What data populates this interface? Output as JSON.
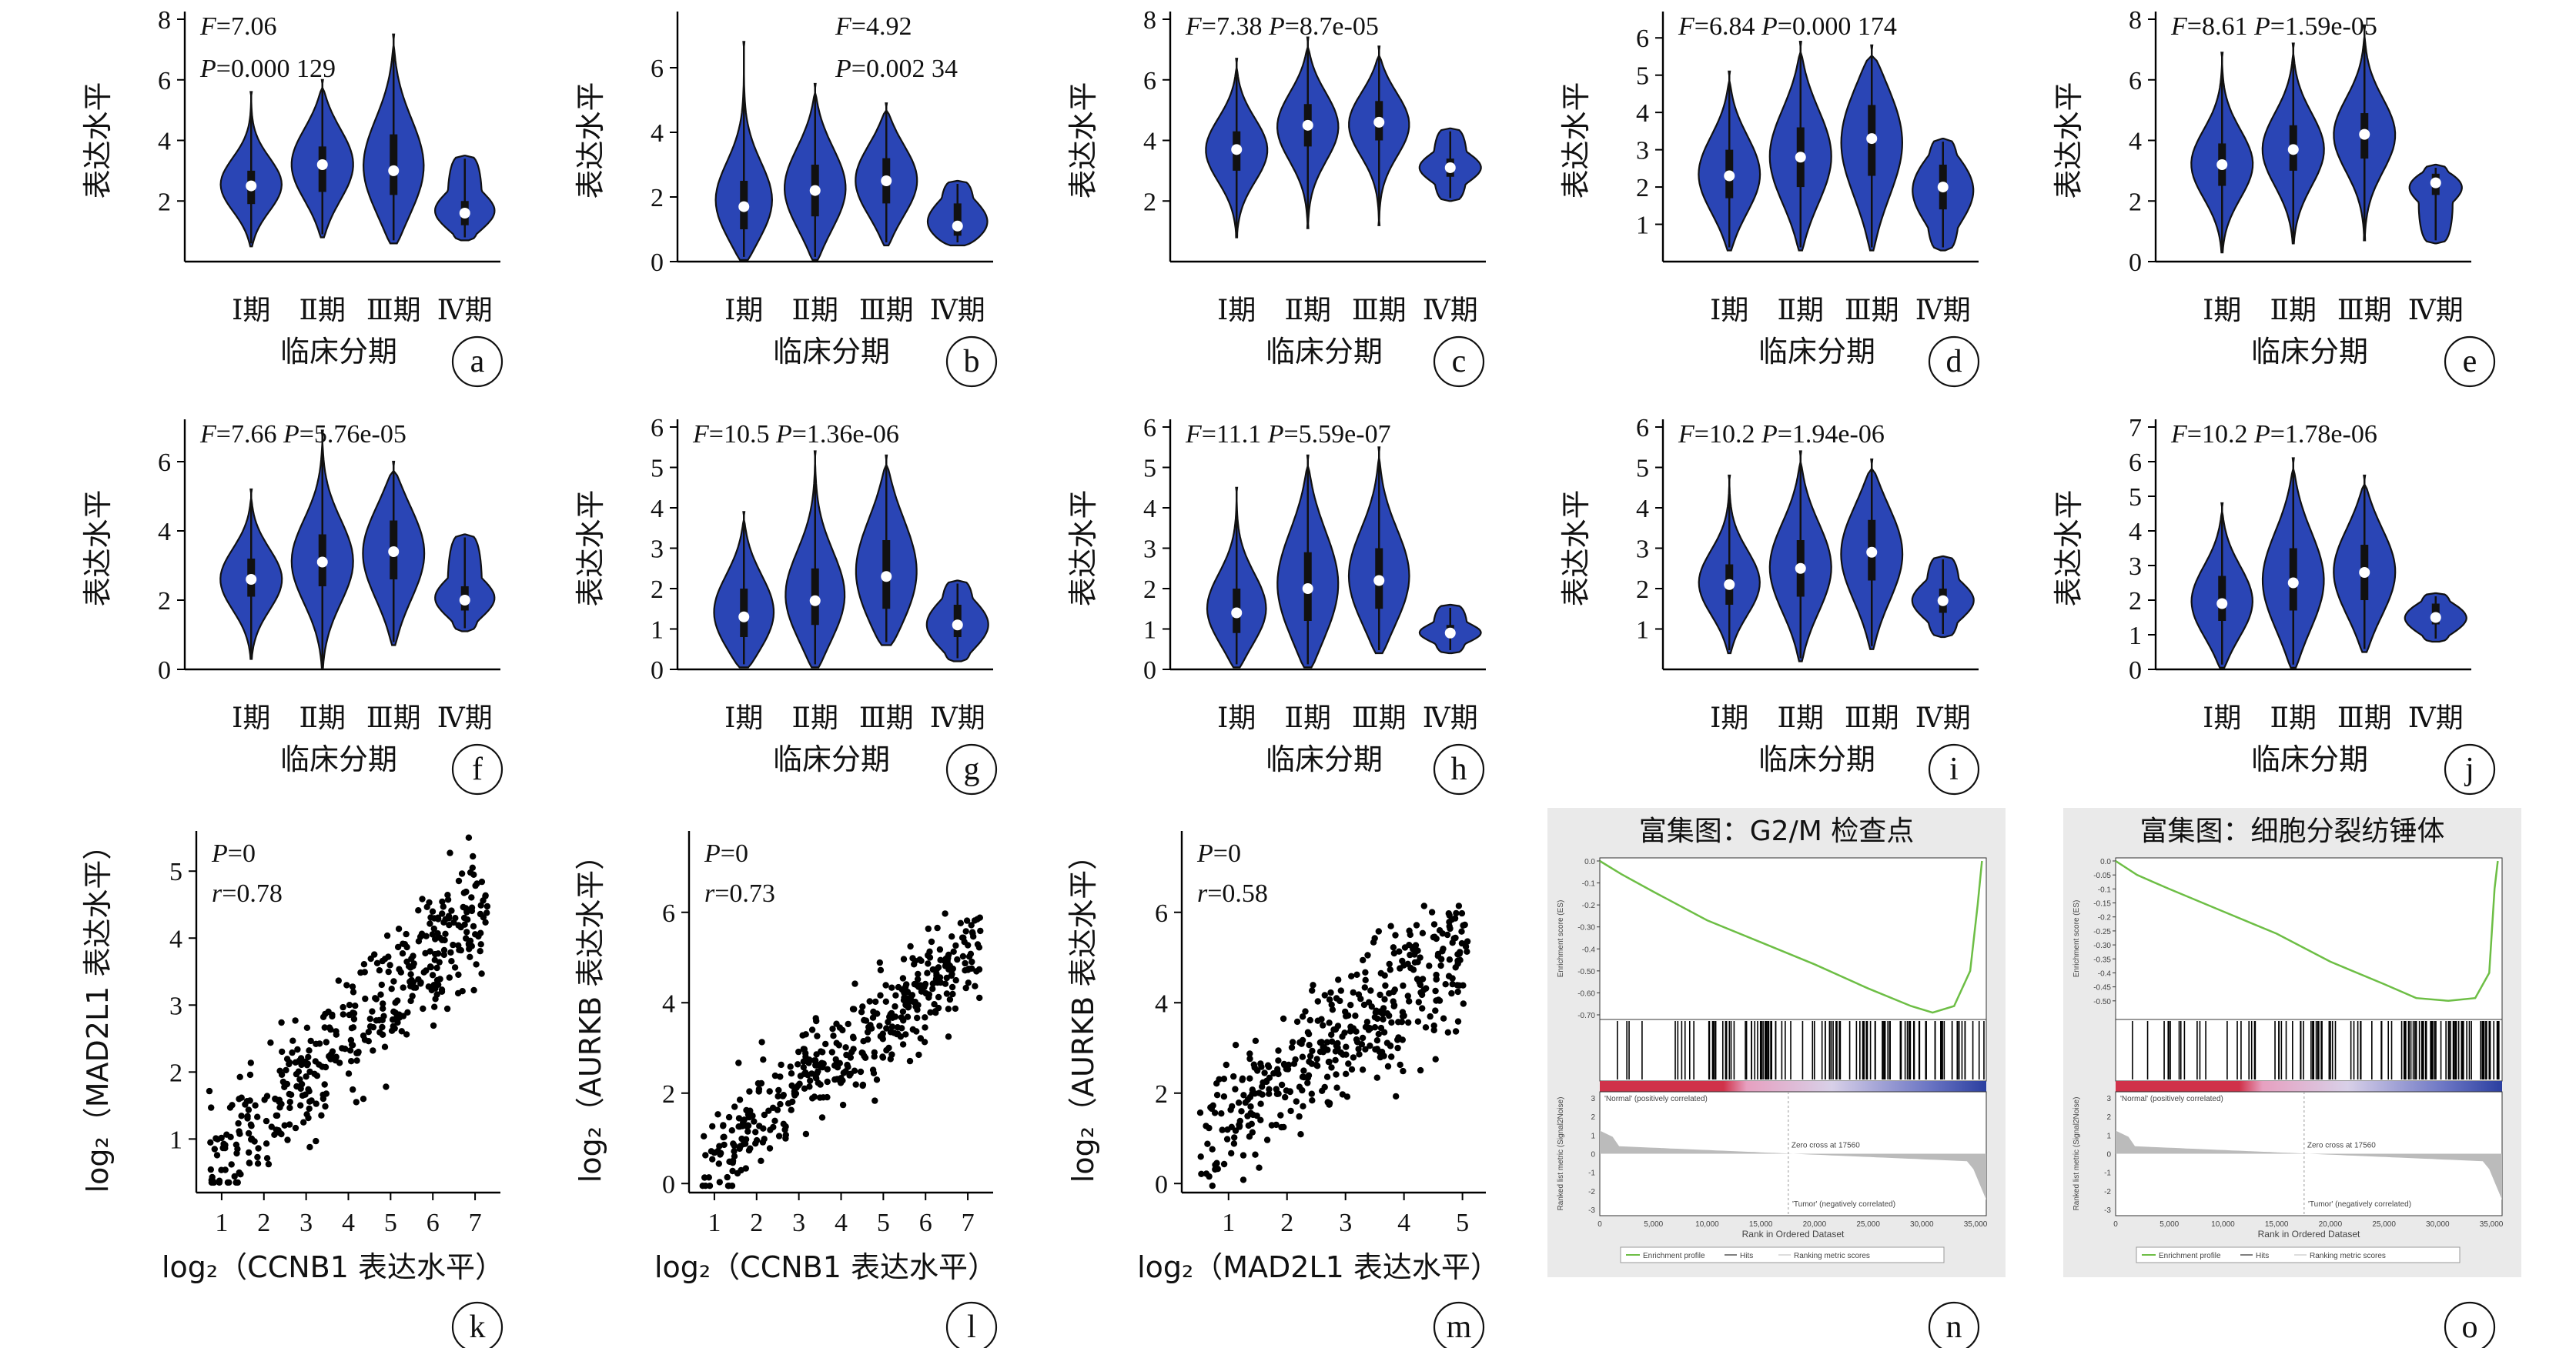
{
  "chart_data": [
    {
      "panel": "a",
      "type": "violin",
      "categories": [
        "Ⅰ期",
        "Ⅱ期",
        "Ⅲ期",
        "Ⅳ期"
      ],
      "ylabel": "表达水平",
      "xlabel": "临床分期",
      "F": "7.06",
      "P": "0.000 129",
      "ylim": [
        0,
        8
      ],
      "yticks": [
        2,
        4,
        6,
        8
      ],
      "groups": [
        {
          "min": 0.5,
          "q1": 1.9,
          "median": 2.5,
          "q3": 3.0,
          "max": 5.6
        },
        {
          "min": 0.8,
          "q1": 2.3,
          "median": 3.2,
          "q3": 3.8,
          "max": 6.0
        },
        {
          "min": 0.6,
          "q1": 2.2,
          "median": 3.0,
          "q3": 4.2,
          "max": 7.5
        },
        {
          "min": 0.7,
          "q1": 1.2,
          "median": 1.6,
          "q3": 2.0,
          "max": 3.5
        }
      ]
    },
    {
      "panel": "b",
      "type": "violin",
      "categories": [
        "Ⅰ期",
        "Ⅱ期",
        "Ⅲ期",
        "Ⅳ期"
      ],
      "ylabel": "表达水平",
      "xlabel": "临床分期",
      "F": "4.92",
      "P": "0.002 34",
      "ylim": [
        0,
        7.5
      ],
      "yticks": [
        0,
        2,
        4,
        6
      ],
      "groups": [
        {
          "min": 0.05,
          "q1": 1.0,
          "median": 1.7,
          "q3": 2.5,
          "max": 6.8
        },
        {
          "min": 0.05,
          "q1": 1.4,
          "median": 2.2,
          "q3": 3.0,
          "max": 5.5
        },
        {
          "min": 0.5,
          "q1": 1.8,
          "median": 2.5,
          "q3": 3.2,
          "max": 4.9
        },
        {
          "min": 0.5,
          "q1": 0.8,
          "median": 1.1,
          "q3": 1.8,
          "max": 2.5
        }
      ]
    },
    {
      "panel": "c",
      "type": "violin",
      "categories": [
        "Ⅰ期",
        "Ⅱ期",
        "Ⅲ期",
        "Ⅳ期"
      ],
      "ylabel": "表达水平",
      "xlabel": "临床分期",
      "F": "7.38",
      "P": "8.7e-05",
      "ylim": [
        0,
        8
      ],
      "yticks": [
        2,
        4,
        6,
        8
      ],
      "groups": [
        {
          "min": 0.8,
          "q1": 3.0,
          "median": 3.7,
          "q3": 4.3,
          "max": 6.7
        },
        {
          "min": 1.1,
          "q1": 3.8,
          "median": 4.5,
          "q3": 5.2,
          "max": 7.4
        },
        {
          "min": 1.2,
          "q1": 4.0,
          "median": 4.6,
          "q3": 5.3,
          "max": 7.1
        },
        {
          "min": 2.0,
          "q1": 2.8,
          "median": 3.1,
          "q3": 3.4,
          "max": 4.4
        }
      ]
    },
    {
      "panel": "d",
      "type": "violin",
      "categories": [
        "Ⅰ期",
        "Ⅱ期",
        "Ⅲ期",
        "Ⅳ期"
      ],
      "ylabel": "表达水平",
      "xlabel": "临床分期",
      "F": "6.84",
      "P": "0.000 174",
      "ylim": [
        0,
        6.5
      ],
      "yticks": [
        1,
        2,
        3,
        4,
        5,
        6
      ],
      "groups": [
        {
          "min": 0.3,
          "q1": 1.7,
          "median": 2.3,
          "q3": 3.0,
          "max": 5.1
        },
        {
          "min": 0.3,
          "q1": 2.0,
          "median": 2.8,
          "q3": 3.6,
          "max": 5.9
        },
        {
          "min": 0.3,
          "q1": 2.3,
          "median": 3.3,
          "q3": 4.2,
          "max": 5.8
        },
        {
          "min": 0.3,
          "q1": 1.4,
          "median": 2.0,
          "q3": 2.6,
          "max": 3.3
        }
      ]
    },
    {
      "panel": "e",
      "type": "violin",
      "categories": [
        "Ⅰ期",
        "Ⅱ期",
        "Ⅲ期",
        "Ⅳ期"
      ],
      "ylabel": "表达水平",
      "xlabel": "临床分期",
      "F": "8.61",
      "P": "1.59e-05",
      "ylim": [
        0,
        8
      ],
      "yticks": [
        0,
        2,
        4,
        6,
        8
      ],
      "groups": [
        {
          "min": 0.3,
          "q1": 2.5,
          "median": 3.2,
          "q3": 3.9,
          "max": 6.9
        },
        {
          "min": 0.6,
          "q1": 3.0,
          "median": 3.7,
          "q3": 4.5,
          "max": 7.2
        },
        {
          "min": 0.7,
          "q1": 3.4,
          "median": 4.2,
          "q3": 4.9,
          "max": 7.8
        },
        {
          "min": 0.6,
          "q1": 2.2,
          "median": 2.6,
          "q3": 2.9,
          "max": 3.2
        }
      ]
    },
    {
      "panel": "f",
      "type": "violin",
      "categories": [
        "Ⅰ期",
        "Ⅱ期",
        "Ⅲ期",
        "Ⅳ期"
      ],
      "ylabel": "表达水平",
      "xlabel": "临床分期",
      "F": "7.66",
      "P": "5.76e-05",
      "ylim": [
        0,
        7
      ],
      "yticks": [
        0,
        2,
        4,
        6
      ],
      "groups": [
        {
          "min": 0.3,
          "q1": 2.1,
          "median": 2.6,
          "q3": 3.2,
          "max": 5.2
        },
        {
          "min": 0.05,
          "q1": 2.4,
          "median": 3.1,
          "q3": 3.9,
          "max": 6.9
        },
        {
          "min": 0.7,
          "q1": 2.6,
          "median": 3.4,
          "q3": 4.3,
          "max": 6.0
        },
        {
          "min": 1.1,
          "q1": 1.7,
          "median": 2.0,
          "q3": 2.4,
          "max": 3.9
        }
      ]
    },
    {
      "panel": "g",
      "type": "violin",
      "categories": [
        "Ⅰ期",
        "Ⅱ期",
        "Ⅲ期",
        "Ⅳ期"
      ],
      "ylabel": "表达水平",
      "xlabel": "临床分期",
      "F": "10.5",
      "P": "1.36e-06",
      "ylim": [
        0,
        6
      ],
      "yticks": [
        0,
        1,
        2,
        3,
        4,
        5,
        6
      ],
      "groups": [
        {
          "min": 0.05,
          "q1": 0.8,
          "median": 1.3,
          "q3": 2.0,
          "max": 3.9
        },
        {
          "min": 0.05,
          "q1": 1.1,
          "median": 1.7,
          "q3": 2.5,
          "max": 5.4
        },
        {
          "min": 0.6,
          "q1": 1.5,
          "median": 2.3,
          "q3": 3.2,
          "max": 5.3
        },
        {
          "min": 0.2,
          "q1": 0.8,
          "median": 1.1,
          "q3": 1.6,
          "max": 2.2
        }
      ]
    },
    {
      "panel": "h",
      "type": "violin",
      "categories": [
        "Ⅰ期",
        "Ⅱ期",
        "Ⅲ期",
        "Ⅳ期"
      ],
      "ylabel": "表达水平",
      "xlabel": "临床分期",
      "F": "11.1",
      "P": "5.59e-07",
      "ylim": [
        0,
        6
      ],
      "yticks": [
        0,
        1,
        2,
        3,
        4,
        5,
        6
      ],
      "groups": [
        {
          "min": 0.05,
          "q1": 0.9,
          "median": 1.4,
          "q3": 2.0,
          "max": 4.5
        },
        {
          "min": 0.05,
          "q1": 1.2,
          "median": 2.0,
          "q3": 2.9,
          "max": 5.3
        },
        {
          "min": 0.4,
          "q1": 1.5,
          "median": 2.2,
          "q3": 3.0,
          "max": 5.5
        },
        {
          "min": 0.4,
          "q1": 0.8,
          "median": 0.9,
          "q3": 1.1,
          "max": 1.6
        }
      ]
    },
    {
      "panel": "i",
      "type": "violin",
      "categories": [
        "Ⅰ期",
        "Ⅱ期",
        "Ⅲ期",
        "Ⅳ期"
      ],
      "ylabel": "表达水平",
      "xlabel": "临床分期",
      "F": "10.2",
      "P": "1.94e-06",
      "ylim": [
        0,
        6
      ],
      "yticks": [
        1,
        2,
        3,
        4,
        5,
        6
      ],
      "groups": [
        {
          "min": 0.4,
          "q1": 1.6,
          "median": 2.1,
          "q3": 2.6,
          "max": 4.8
        },
        {
          "min": 0.2,
          "q1": 1.8,
          "median": 2.5,
          "q3": 3.2,
          "max": 5.4
        },
        {
          "min": 0.5,
          "q1": 2.2,
          "median": 2.9,
          "q3": 3.7,
          "max": 5.2
        },
        {
          "min": 0.8,
          "q1": 1.4,
          "median": 1.7,
          "q3": 2.0,
          "max": 2.8
        }
      ]
    },
    {
      "panel": "j",
      "type": "violin",
      "categories": [
        "Ⅰ期",
        "Ⅱ期",
        "Ⅲ期",
        "Ⅳ期"
      ],
      "ylabel": "表达水平",
      "xlabel": "临床分期",
      "F": "10.2",
      "P": "1.78e-06",
      "ylim": [
        0,
        7
      ],
      "yticks": [
        0,
        1,
        2,
        3,
        4,
        5,
        6,
        7
      ],
      "groups": [
        {
          "min": 0.05,
          "q1": 1.4,
          "median": 1.9,
          "q3": 2.7,
          "max": 4.8
        },
        {
          "min": 0.05,
          "q1": 1.7,
          "median": 2.5,
          "q3": 3.5,
          "max": 6.1
        },
        {
          "min": 0.5,
          "q1": 2.0,
          "median": 2.8,
          "q3": 3.6,
          "max": 5.6
        },
        {
          "min": 0.8,
          "q1": 1.3,
          "median": 1.5,
          "q3": 1.9,
          "max": 2.2
        }
      ]
    },
    {
      "panel": "k",
      "type": "scatter",
      "xlabel": "log₂（CCNB1 表达水平）",
      "ylabel": "log₂（MAD2L1 表达水平）",
      "P": "0",
      "r": "0.78",
      "xlim": [
        0.4,
        7.6
      ],
      "ylim": [
        0.2,
        5.6
      ],
      "xticks": [
        1,
        2,
        3,
        4,
        5,
        6,
        7
      ],
      "yticks": [
        1,
        2,
        3,
        4,
        5
      ],
      "n_points": 420,
      "slope": 0.62,
      "intercept": 0.05,
      "noise": 0.45
    },
    {
      "panel": "l",
      "type": "scatter",
      "xlabel": "log₂（CCNB1 表达水平）",
      "ylabel": "log₂（AURKB 表达水平）",
      "P": "0",
      "r": "0.73",
      "xlim": [
        0.4,
        7.6
      ],
      "ylim": [
        -0.2,
        7.8
      ],
      "xticks": [
        1,
        2,
        3,
        4,
        5,
        6,
        7
      ],
      "yticks": [
        0,
        2,
        4,
        6
      ],
      "n_points": 420,
      "slope": 0.75,
      "intercept": -0.2,
      "noise": 0.55
    },
    {
      "panel": "m",
      "type": "scatter",
      "xlabel": "log₂（MAD2L1 表达水平）",
      "ylabel": "log₂（AURKB 表达水平）",
      "P": "0",
      "r": "0.58",
      "xlim": [
        0.2,
        5.4
      ],
      "ylim": [
        -0.2,
        7.8
      ],
      "xticks": [
        1,
        2,
        3,
        4,
        5
      ],
      "yticks": [
        0,
        2,
        4,
        6
      ],
      "n_points": 420,
      "slope": 0.95,
      "intercept": 0.4,
      "noise": 0.75
    },
    {
      "panel": "n",
      "type": "line",
      "subtype": "gsea",
      "title": "富集图：G2/M 检查点",
      "es_min": -0.7,
      "es_yticks": [
        0.0,
        -0.1,
        -0.2,
        -0.3,
        -0.4,
        -0.5,
        -0.6,
        -0.7
      ],
      "x_ticks": [
        "0",
        "5,000",
        "10,000",
        "15,000",
        "20,000",
        "25,000",
        "30,000",
        "35,000"
      ],
      "xlim": [
        0,
        36000
      ],
      "zero_cross": "Zero cross at 17560",
      "es_curve": [
        [
          0,
          0
        ],
        [
          2000,
          -0.06
        ],
        [
          5000,
          -0.14
        ],
        [
          10000,
          -0.27
        ],
        [
          15000,
          -0.37
        ],
        [
          20000,
          -0.47
        ],
        [
          25000,
          -0.58
        ],
        [
          29000,
          -0.66
        ],
        [
          31000,
          -0.69
        ],
        [
          33000,
          -0.66
        ],
        [
          34500,
          -0.5
        ],
        [
          35200,
          -0.2
        ],
        [
          35600,
          0
        ]
      ],
      "ylabel_es": "Enrichment score (ES)",
      "ylabel_rank": "Ranked list metric (Signal2Noise)",
      "xlabel": "Rank in Ordered Dataset",
      "normal_label": "'Normal' (positively correlated)",
      "tumor_label": "'Tumor' (negatively correlated)",
      "legend": [
        "Enrichment profile",
        "Hits",
        "Ranking metric scores"
      ],
      "rank_yticks": [
        "3",
        "2",
        "1",
        "0",
        "-1",
        "-2",
        "-3"
      ]
    },
    {
      "panel": "o",
      "type": "line",
      "subtype": "gsea",
      "title": "富集图：细胞分裂纺锤体",
      "es_min": -0.55,
      "es_yticks": [
        0.0,
        -0.05,
        -0.1,
        -0.15,
        -0.2,
        -0.25,
        -0.3,
        -0.35,
        -0.4,
        -0.45,
        -0.5
      ],
      "x_ticks": [
        "0",
        "5,000",
        "10,000",
        "15,000",
        "20,000",
        "25,000",
        "30,000",
        "35,000"
      ],
      "xlim": [
        0,
        36000
      ],
      "zero_cross": "Zero cross at 17560",
      "es_curve": [
        [
          0,
          0
        ],
        [
          2000,
          -0.05
        ],
        [
          5000,
          -0.1
        ],
        [
          10000,
          -0.18
        ],
        [
          15000,
          -0.26
        ],
        [
          20000,
          -0.36
        ],
        [
          25000,
          -0.44
        ],
        [
          28000,
          -0.49
        ],
        [
          31000,
          -0.5
        ],
        [
          33500,
          -0.49
        ],
        [
          34800,
          -0.4
        ],
        [
          35300,
          -0.1
        ],
        [
          35600,
          0
        ]
      ],
      "ylabel_es": "Enrichment score (ES)",
      "ylabel_rank": "Ranked list metric (Signal2Noise)",
      "xlabel": "Rank in Ordered Dataset",
      "normal_label": "'Normal' (positively correlated)",
      "tumor_label": "'Tumor' (negatively correlated)",
      "legend": [
        "Enrichment profile",
        "Hits",
        "Ranking metric scores"
      ],
      "rank_yticks": [
        "3",
        "2",
        "1",
        "0",
        "-1",
        "-2",
        "-3"
      ]
    }
  ],
  "colors": {
    "violin_fill": "#2A45B5",
    "es_curve": "#6DBE45",
    "gsea_bg": "#EAEAEA",
    "red": "#D0324A",
    "pink": "#E6A0C0",
    "blue": "#2B3FA0"
  }
}
